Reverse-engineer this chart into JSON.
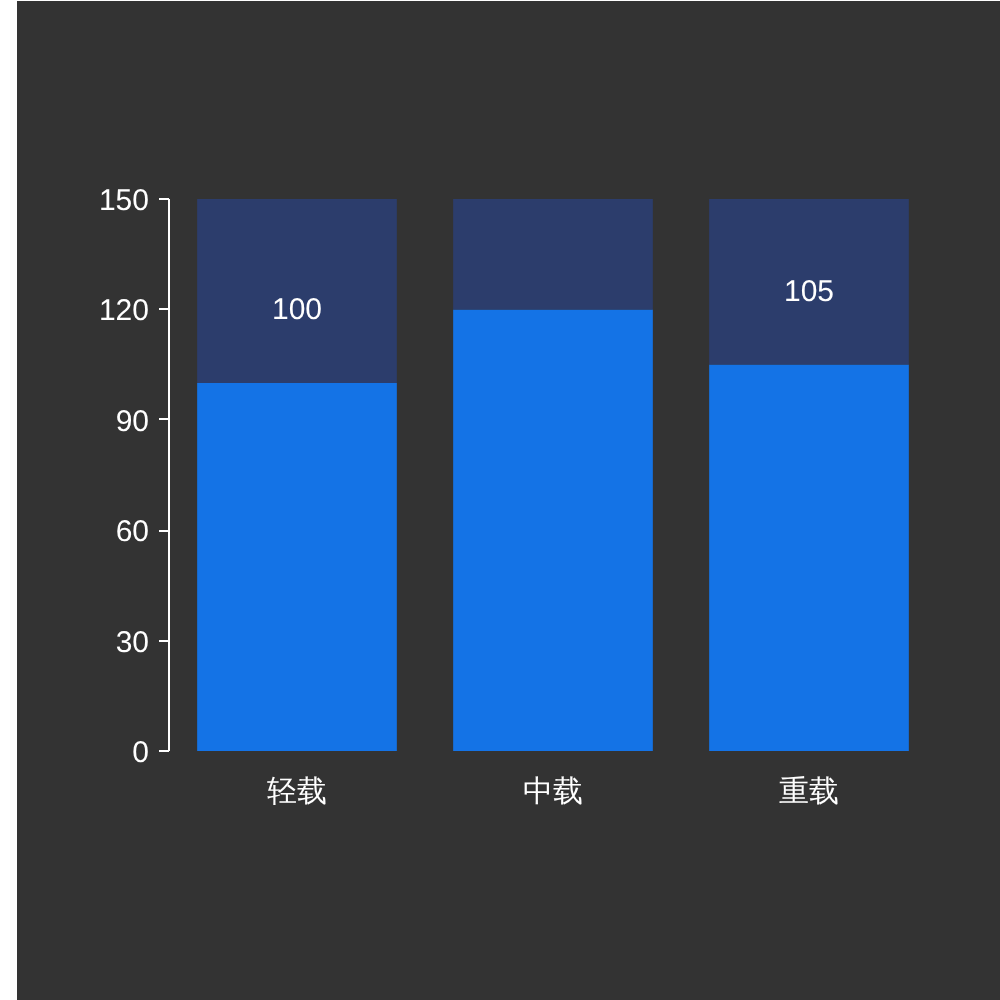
{
  "chart_data": {
    "type": "bar",
    "stacked": true,
    "categories": [
      "轻载",
      "中载",
      "重载"
    ],
    "series": [
      {
        "color": "#1473e6",
        "values": [
          100,
          120,
          105
        ],
        "value_labels": [
          "100",
          null,
          "105"
        ]
      },
      {
        "color": "#2c3d6c",
        "values": [
          50,
          30,
          45
        ]
      }
    ],
    "ylim": [
      0,
      150
    ],
    "yticks": [
      0,
      30,
      60,
      90,
      120,
      150
    ],
    "grid": false
  }
}
